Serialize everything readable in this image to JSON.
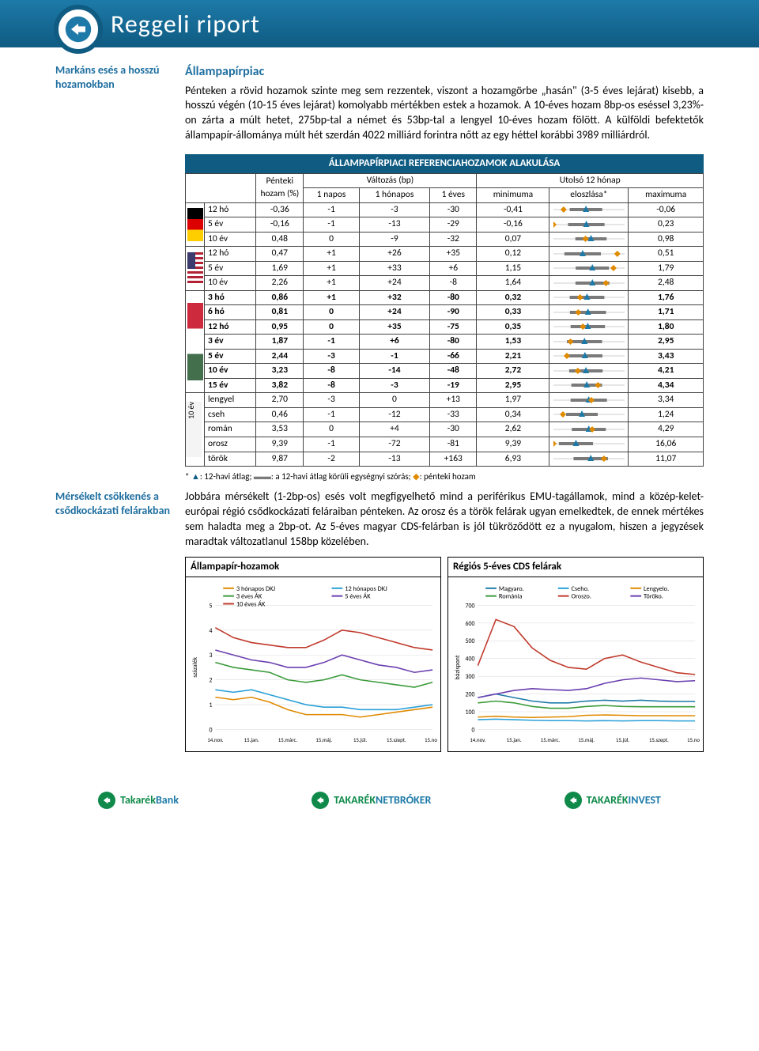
{
  "header": {
    "title": "Reggeli riport"
  },
  "section": {
    "title": "Állampapírpiac",
    "side1": "Markáns esés a hosszú hozamokban",
    "para1": "Pénteken a rövid hozamok szinte meg sem rezzentek, viszont a hozamgörbe „hasán\" (3-5 éves lejárat) kisebb, a hosszú végén (10-15 éves lejárat) komolyabb mértékben estek a hozamok. A 10-éves hozam 8bp-os eséssel 3,23%-on zárta a múlt hetet, 275bp-tal a német és 53bp-tal a lengyel 10-éves hozam fölött. A külföldi befektetők állampapír-állománya múlt hét szerdán 4022 milliárd forintra nőtt az egy héttel korábbi 3989 milliárdról.",
    "side2": "Mérsékelt csökkenés a csődkockázati felárakban",
    "para2": "Jobbára mérsékelt (1-2bp-os) esés volt megfigyelhető mind a periférikus EMU-tagállamok, mind a közép-kelet-európai régió csődkockázati feláraiban pénteken. Az orosz és a török felárak ugyan emelkedtek, de ennek mértékes sem haladta meg a 2bp-ot. Az 5-éves magyar CDS-felárban is jól tükröződött ez a nyugalom, hiszen a jegyzések maradtak változatlanul 158bp közelében."
  },
  "table": {
    "title": "ÁLLAMPAPÍRPIACI REFERENCIAHOZAMOK ALAKULÁSA",
    "head": {
      "c1": "Pénteki hozam (%)",
      "c2": "Változás (bp)",
      "c2a": "1 napos",
      "c2b": "1 hónapos",
      "c2c": "1 éves",
      "c3": "Utolsó 12 hónap",
      "c3a": "minimuma",
      "c3b": "eloszlása*",
      "c3c": "maximuma"
    },
    "rows": [
      {
        "g": "de",
        "t": "12 hó",
        "v": [
          "-0,36",
          "-1",
          "-3",
          "-30",
          "-0,41",
          "",
          "-0,06"
        ],
        "sp": {
          "lo": -0.41,
          "hi": -0.06,
          "m": -0.25,
          "s": 0.08,
          "p": -0.36
        }
      },
      {
        "g": "de",
        "t": "5 év",
        "v": [
          "-0,16",
          "-1",
          "-13",
          "-29",
          "-0,16",
          "",
          "0,23"
        ],
        "sp": {
          "lo": -0.16,
          "hi": 0.23,
          "m": 0.02,
          "s": 0.1,
          "p": -0.16
        }
      },
      {
        "g": "de",
        "t": "10 év",
        "v": [
          "0,48",
          "0",
          "-9",
          "-32",
          "0,07",
          "",
          "0,98"
        ],
        "sp": {
          "lo": 0.07,
          "hi": 0.98,
          "m": 0.55,
          "s": 0.2,
          "p": 0.48
        }
      },
      {
        "g": "us",
        "t": "12 hó",
        "v": [
          "0,47",
          "+1",
          "+26",
          "+35",
          "0,12",
          "",
          "0,51"
        ],
        "sp": {
          "lo": 0.12,
          "hi": 0.51,
          "m": 0.28,
          "s": 0.1,
          "p": 0.47
        }
      },
      {
        "g": "us",
        "t": "5 év",
        "v": [
          "1,69",
          "+1",
          "+33",
          "+6",
          "1,15",
          "",
          "1,79"
        ],
        "sp": {
          "lo": 1.15,
          "hi": 1.79,
          "m": 1.5,
          "s": 0.15,
          "p": 1.69
        }
      },
      {
        "g": "us",
        "t": "10 év",
        "v": [
          "2,26",
          "+1",
          "+24",
          "-8",
          "1,64",
          "",
          "2,48"
        ],
        "sp": {
          "lo": 1.64,
          "hi": 2.48,
          "m": 2.1,
          "s": 0.2,
          "p": 2.26
        }
      },
      {
        "g": "hu",
        "t": "3 hó",
        "v": [
          "0,86",
          "+1",
          "+32",
          "-80",
          "0,32",
          "",
          "1,76"
        ],
        "sp": {
          "lo": 0.32,
          "hi": 1.76,
          "m": 1.0,
          "s": 0.35,
          "p": 0.86
        },
        "hu": true
      },
      {
        "g": "hu",
        "t": "6 hó",
        "v": [
          "0,81",
          "0",
          "+24",
          "-90",
          "0,33",
          "",
          "1,71"
        ],
        "sp": {
          "lo": 0.33,
          "hi": 1.71,
          "m": 1.0,
          "s": 0.35,
          "p": 0.81
        },
        "hu": true
      },
      {
        "g": "hu",
        "t": "12 hó",
        "v": [
          "0,95",
          "0",
          "+35",
          "-75",
          "0,35",
          "",
          "1,80"
        ],
        "sp": {
          "lo": 0.35,
          "hi": 1.8,
          "m": 1.05,
          "s": 0.35,
          "p": 0.95
        },
        "hu": true
      },
      {
        "g": "hu",
        "t": "3 év",
        "v": [
          "1,87",
          "-1",
          "+6",
          "-80",
          "1,53",
          "",
          "2,95"
        ],
        "sp": {
          "lo": 1.53,
          "hi": 2.95,
          "m": 2.15,
          "s": 0.35,
          "p": 1.87
        },
        "hu": true
      },
      {
        "g": "hu",
        "t": "5 év",
        "v": [
          "2,44",
          "-3",
          "-1",
          "-66",
          "2,21",
          "",
          "3,43"
        ],
        "sp": {
          "lo": 2.21,
          "hi": 3.43,
          "m": 2.75,
          "s": 0.3,
          "p": 2.44
        },
        "hu": true
      },
      {
        "g": "hu",
        "t": "10 év",
        "v": [
          "3,23",
          "-8",
          "-14",
          "-48",
          "2,72",
          "",
          "4,21"
        ],
        "sp": {
          "lo": 2.72,
          "hi": 4.21,
          "m": 3.4,
          "s": 0.35,
          "p": 3.23
        },
        "hu": true
      },
      {
        "g": "hu",
        "t": "15 év",
        "v": [
          "3,82",
          "-8",
          "-3",
          "-19",
          "2,95",
          "",
          "4,34"
        ],
        "sp": {
          "lo": 2.95,
          "hi": 4.34,
          "m": 3.6,
          "s": 0.3,
          "p": 3.82
        },
        "hu": true
      },
      {
        "g": "x",
        "t": "lengyel",
        "v": [
          "2,70",
          "-3",
          "0",
          "+13",
          "1,97",
          "",
          "3,34"
        ],
        "sp": {
          "lo": 1.97,
          "hi": 3.34,
          "m": 2.65,
          "s": 0.35,
          "p": 2.7
        }
      },
      {
        "g": "x",
        "t": "cseh",
        "v": [
          "0,46",
          "-1",
          "-12",
          "-33",
          "0,34",
          "",
          "1,24"
        ],
        "sp": {
          "lo": 0.34,
          "hi": 1.24,
          "m": 0.7,
          "s": 0.2,
          "p": 0.46
        }
      },
      {
        "g": "x",
        "t": "román",
        "v": [
          "3,53",
          "0",
          "+4",
          "-30",
          "2,62",
          "",
          "4,29"
        ],
        "sp": {
          "lo": 2.62,
          "hi": 4.29,
          "m": 3.45,
          "s": 0.4,
          "p": 3.53
        }
      },
      {
        "g": "x",
        "t": "orosz",
        "v": [
          "9,39",
          "-1",
          "-72",
          "-81",
          "9,39",
          "",
          "16,06"
        ],
        "sp": {
          "lo": 9.39,
          "hi": 16.06,
          "m": 11.5,
          "s": 1.6,
          "p": 9.39
        }
      },
      {
        "g": "x",
        "t": "török",
        "v": [
          "9,87",
          "-2",
          "-13",
          "+163",
          "6,93",
          "",
          "11,07"
        ],
        "sp": {
          "lo": 6.93,
          "hi": 11.07,
          "m": 9.1,
          "s": 1.0,
          "p": 9.87
        }
      }
    ],
    "group10": "10 év"
  },
  "note": {
    "text1": "* ",
    "tri": "▲",
    "text2": ": 12-havi átlag;   ",
    "bar": "▬▬",
    "text3": ": a 12-havi átlag körüli egységnyi szórás;   ",
    "dia": "◆",
    "text4": ": pénteki hozam"
  },
  "charts": {
    "left": {
      "title": "Állampapír-hozamok",
      "ylabel": "százalék",
      "ylim": [
        0,
        5
      ],
      "ytick": 1,
      "xticks": [
        "14.nov.",
        "15.jan.",
        "15.márc.",
        "15.máj.",
        "15.júl.",
        "15.szept.",
        "15.nov."
      ],
      "series": [
        {
          "name": "3 hónapos DKJ",
          "color": "#e08a00",
          "y": [
            1.3,
            1.2,
            1.3,
            1.1,
            0.8,
            0.6,
            0.6,
            0.6,
            0.5,
            0.6,
            0.7,
            0.8,
            0.9
          ]
        },
        {
          "name": "12 hónapos DKJ",
          "color": "#2aa0d8",
          "y": [
            1.6,
            1.5,
            1.6,
            1.4,
            1.2,
            1.0,
            0.9,
            0.9,
            0.8,
            0.8,
            0.8,
            0.9,
            1.0
          ]
        },
        {
          "name": "3 éves ÁK",
          "color": "#3a9b3a",
          "y": [
            2.7,
            2.5,
            2.4,
            2.3,
            2.0,
            1.9,
            2.0,
            2.2,
            2.0,
            1.9,
            1.8,
            1.7,
            1.9
          ]
        },
        {
          "name": "5 éves ÁK",
          "color": "#6a3fb0",
          "y": [
            3.2,
            3.0,
            2.8,
            2.7,
            2.5,
            2.5,
            2.7,
            3.0,
            2.8,
            2.6,
            2.5,
            2.3,
            2.4
          ]
        },
        {
          "name": "10 éves ÁK",
          "color": "#c0392b",
          "y": [
            4.1,
            3.7,
            3.5,
            3.4,
            3.3,
            3.3,
            3.6,
            4.0,
            3.9,
            3.7,
            3.5,
            3.3,
            3.2
          ]
        }
      ]
    },
    "right": {
      "title": "Régiós 5-éves CDS felárak",
      "ylabel": "bázispont",
      "ylim": [
        0,
        700
      ],
      "ytick": 100,
      "xticks": [
        "14.nov.",
        "15.jan.",
        "15.márc.",
        "15.máj.",
        "15.júl.",
        "15.szept.",
        "15.nov."
      ],
      "series": [
        {
          "name": "Magyaro.",
          "color": "#1d7aa8",
          "y": [
            180,
            200,
            180,
            160,
            150,
            150,
            160,
            165,
            160,
            165,
            160,
            158,
            158
          ]
        },
        {
          "name": "Cseho.",
          "color": "#2aa0d8",
          "y": [
            55,
            58,
            55,
            52,
            50,
            50,
            48,
            50,
            48,
            50,
            50,
            48,
            48
          ]
        },
        {
          "name": "Lengyelo.",
          "color": "#e08a00",
          "y": [
            70,
            75,
            70,
            68,
            70,
            72,
            80,
            82,
            80,
            78,
            78,
            78,
            78
          ]
        },
        {
          "name": "Románia",
          "color": "#3a9b3a",
          "y": [
            150,
            160,
            150,
            130,
            120,
            120,
            130,
            135,
            130,
            128,
            128,
            128,
            128
          ]
        },
        {
          "name": "Oroszo.",
          "color": "#c0392b",
          "y": [
            360,
            620,
            580,
            460,
            390,
            350,
            340,
            400,
            420,
            380,
            350,
            320,
            310
          ]
        },
        {
          "name": "Töröko.",
          "color": "#6a3fb0",
          "y": [
            180,
            200,
            220,
            230,
            225,
            220,
            230,
            260,
            280,
            290,
            280,
            270,
            275
          ]
        }
      ]
    }
  },
  "footer": [
    {
      "bank": "Takarék",
      "suffix": "Bank",
      "sw": "#0f8a4a"
    },
    {
      "bank": "TAKARÉK",
      "suffix": "NETBRÓKER",
      "sw": "#1d7aa8"
    },
    {
      "bank": "TAKARÉK",
      "suffix": "INVEST",
      "sw": "#1d7aa8"
    }
  ],
  "styling": {
    "spark": {
      "w": 90,
      "h": 12,
      "bar": "#7a7a7a",
      "tri": "#1d7aa8",
      "dia": "#e08a00"
    }
  }
}
